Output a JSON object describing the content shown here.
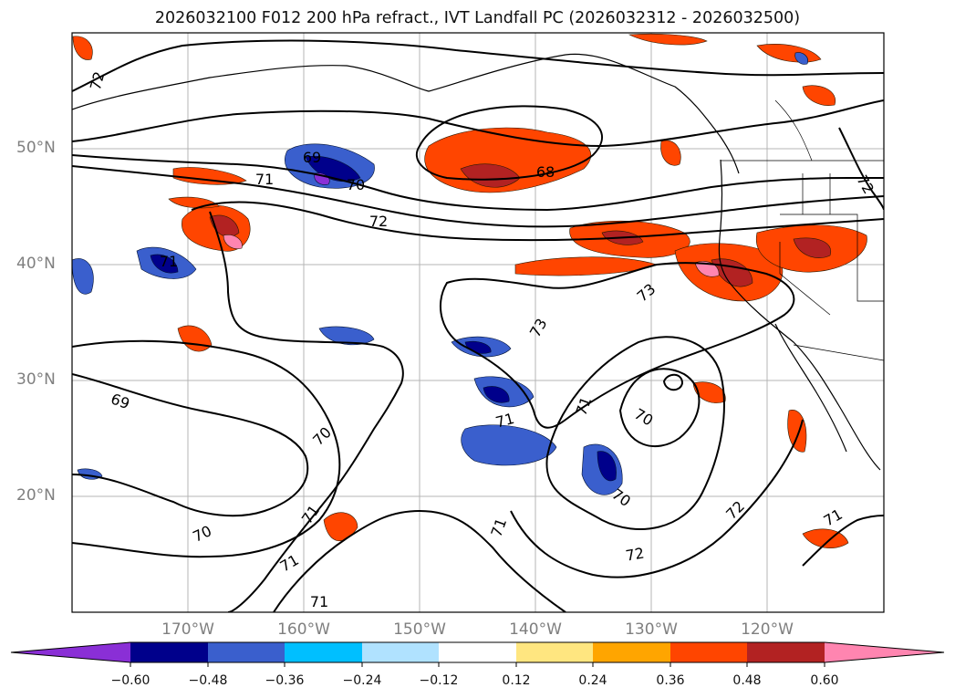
{
  "title": "2026032100 F012 200 hPa refract., IVT Landfall PC (2026032312 - 2026032500)",
  "lat_labels": [
    "50°N",
    "40°N",
    "30°N",
    "20°N"
  ],
  "lon_labels": [
    "170°W",
    "160°W",
    "150°W",
    "140°W",
    "130°W",
    "120°W"
  ],
  "colorbar": {
    "ticks": [
      "−0.60",
      "−0.48",
      "−0.36",
      "−0.24",
      "−0.12",
      "0.12",
      "0.24",
      "0.36",
      "0.48",
      "0.60"
    ],
    "colors": [
      "#8a2fd6",
      "#00008b",
      "#3a5fcd",
      "#00bfff",
      "#b0e2ff",
      "#ffffff",
      "#ffe680",
      "#ffa500",
      "#ff4500",
      "#b22222",
      "#ff85b0"
    ]
  },
  "contour_labels": [
    "72",
    "71",
    "70",
    "69",
    "72",
    "68",
    "71",
    "73",
    "73",
    "69",
    "70",
    "71",
    "71",
    "70",
    "70",
    "71",
    "72",
    "72",
    "71",
    "70",
    "71",
    "71",
    "71",
    "72"
  ],
  "colors": {
    "blue_dark": "#00008b",
    "blue_mid": "#3a5fcd",
    "blue_light": "#00bfff",
    "purple": "#8a2fd6",
    "orange_light": "#ffe680",
    "orange": "#ffa500",
    "red_orange": "#ff4500",
    "dark_red": "#b22222",
    "pink": "#ff85b0"
  }
}
